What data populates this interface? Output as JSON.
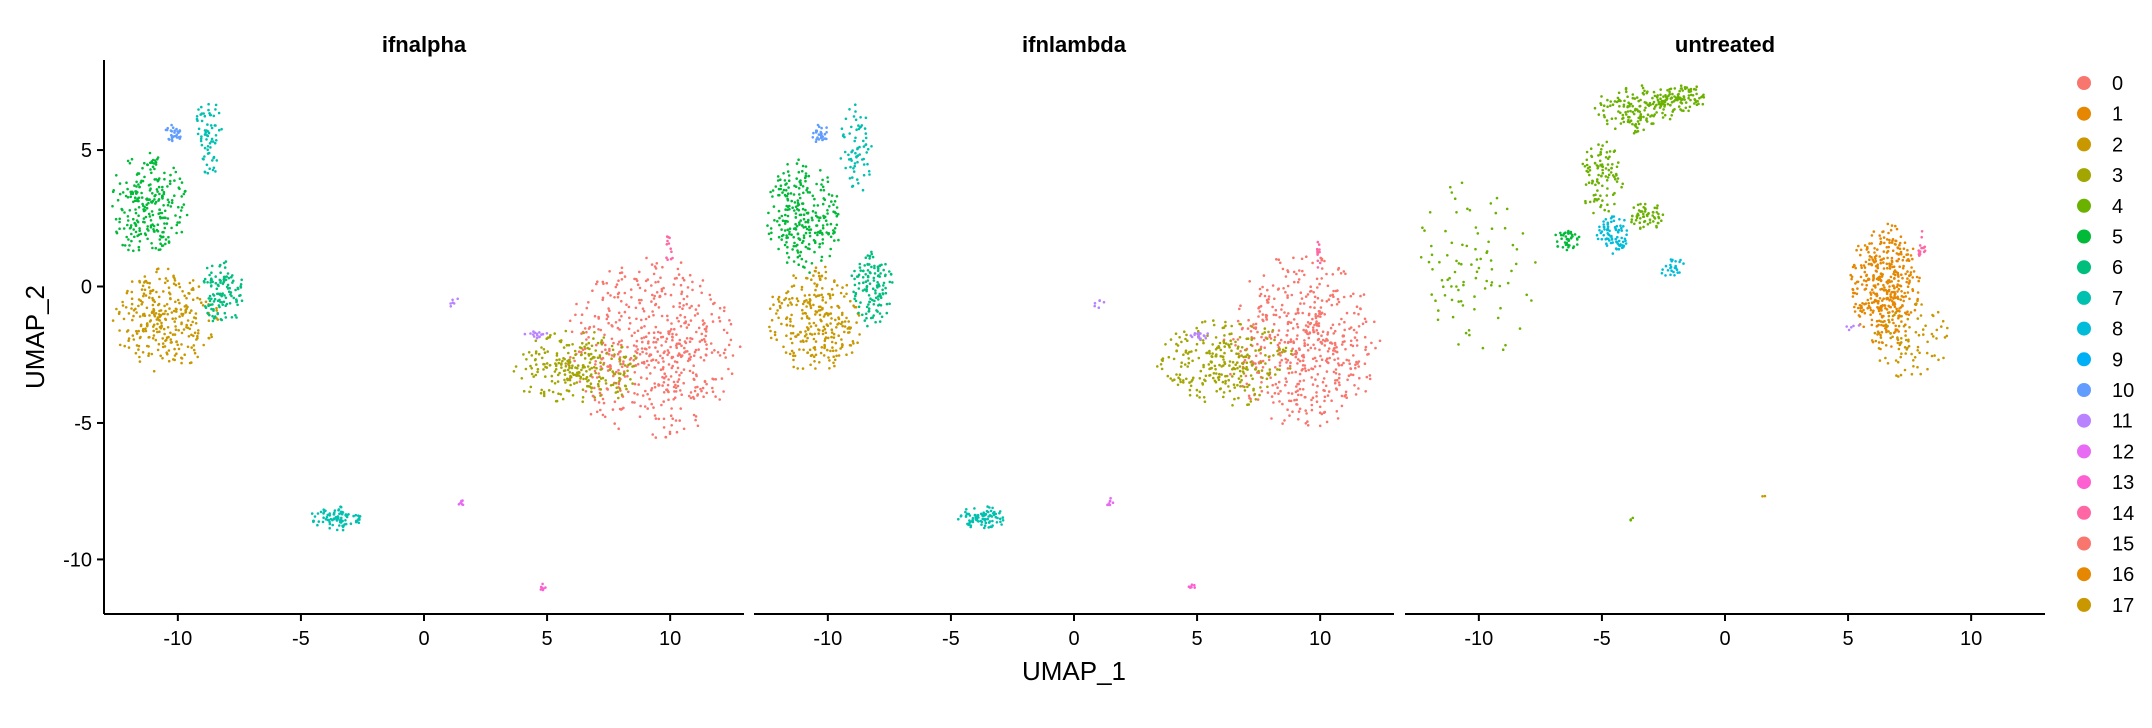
{
  "chart_data": {
    "type": "scatter",
    "xlabel": "UMAP_1",
    "ylabel": "UMAP_2",
    "xlim": [
      -13,
      13
    ],
    "ylim": [
      -12,
      8.3
    ],
    "xticks": [
      -10,
      -5,
      0,
      5,
      10
    ],
    "yticks": [
      5,
      0,
      -5,
      -10
    ],
    "legend_position": "right",
    "legend": [
      {
        "label": "0",
        "color": "#F8766D"
      },
      {
        "label": "1",
        "color": "#E58700"
      },
      {
        "label": "2",
        "color": "#C99800"
      },
      {
        "label": "3",
        "color": "#A3A500"
      },
      {
        "label": "4",
        "color": "#6BB100"
      },
      {
        "label": "5",
        "color": "#00BA38"
      },
      {
        "label": "6",
        "color": "#00BF7D"
      },
      {
        "label": "7",
        "color": "#00C0AF"
      },
      {
        "label": "8",
        "color": "#00BCD8"
      },
      {
        "label": "9",
        "color": "#00B0F6"
      },
      {
        "label": "10",
        "color": "#619CFF"
      },
      {
        "label": "11",
        "color": "#B983FF"
      },
      {
        "label": "12",
        "color": "#E76BF3"
      },
      {
        "label": "13",
        "color": "#FD61D1"
      },
      {
        "label": "14",
        "color": "#FF67A4"
      },
      {
        "label": "15",
        "color": "#F8766D"
      },
      {
        "label": "16",
        "color": "#E58700"
      },
      {
        "label": "17",
        "color": "#C99800"
      }
    ],
    "panels": [
      {
        "title": "ifnalpha",
        "clusters": [
          {
            "color": "#F8766D",
            "cx": 9.3,
            "cy": -2.3,
            "rx": 2.0,
            "ry": 1.9,
            "n": 560
          },
          {
            "color": "#A3A500",
            "cx": 6.2,
            "cy": -3.0,
            "rx": 1.5,
            "ry": 0.8,
            "n": 260
          },
          {
            "color": "#C99800",
            "cx": -10.5,
            "cy": -1.2,
            "rx": 1.2,
            "ry": 1.1,
            "n": 300
          },
          {
            "color": "#00BA38",
            "cx": -11.2,
            "cy": 3.0,
            "rx": 0.9,
            "ry": 1.2,
            "n": 260
          },
          {
            "color": "#00BF7D",
            "cx": -8.2,
            "cy": -0.2,
            "rx": 0.5,
            "ry": 0.7,
            "n": 120
          },
          {
            "color": "#00C0AF",
            "cx": -3.6,
            "cy": -8.5,
            "rx": 0.6,
            "ry": 0.25,
            "n": 90
          },
          {
            "color": "#00C0AF",
            "cx": -8.7,
            "cy": 5.5,
            "rx": 0.4,
            "ry": 0.9,
            "n": 70
          },
          {
            "color": "#619CFF",
            "cx": -10.2,
            "cy": 5.6,
            "rx": 0.2,
            "ry": 0.2,
            "n": 30
          },
          {
            "color": "#B983FF",
            "cx": 4.6,
            "cy": -1.8,
            "rx": 0.3,
            "ry": 0.1,
            "n": 15
          },
          {
            "color": "#B983FF",
            "cx": 1.2,
            "cy": -0.6,
            "rx": 0.2,
            "ry": 0.1,
            "n": 6
          },
          {
            "color": "#E76BF3",
            "cx": 1.5,
            "cy": -7.9,
            "rx": 0.1,
            "ry": 0.1,
            "n": 8
          },
          {
            "color": "#FD61D1",
            "cx": 4.8,
            "cy": -11.0,
            "rx": 0.1,
            "ry": 0.1,
            "n": 8
          },
          {
            "color": "#FF67A4",
            "cx": 10.0,
            "cy": 1.4,
            "rx": 0.1,
            "ry": 0.4,
            "n": 12
          }
        ]
      },
      {
        "title": "ifnlambda",
        "clusters": [
          {
            "color": "#F8766D",
            "cx": 9.3,
            "cy": -2.0,
            "rx": 1.8,
            "ry": 1.8,
            "n": 540
          },
          {
            "color": "#A3A500",
            "cx": 6.2,
            "cy": -2.8,
            "rx": 1.6,
            "ry": 0.9,
            "n": 280
          },
          {
            "color": "#C99800",
            "cx": -10.5,
            "cy": -1.2,
            "rx": 1.1,
            "ry": 1.1,
            "n": 280
          },
          {
            "color": "#00BA38",
            "cx": -11.0,
            "cy": 2.6,
            "rx": 0.9,
            "ry": 1.2,
            "n": 270
          },
          {
            "color": "#00BF7D",
            "cx": -8.2,
            "cy": -0.1,
            "rx": 0.5,
            "ry": 0.8,
            "n": 130
          },
          {
            "color": "#00C0AF",
            "cx": -3.7,
            "cy": -8.5,
            "rx": 0.6,
            "ry": 0.25,
            "n": 90
          },
          {
            "color": "#00C0AF",
            "cx": -8.8,
            "cy": 5.0,
            "rx": 0.4,
            "ry": 1.0,
            "n": 70
          },
          {
            "color": "#619CFF",
            "cx": -10.3,
            "cy": 5.6,
            "rx": 0.2,
            "ry": 0.2,
            "n": 30
          },
          {
            "color": "#B983FF",
            "cx": 5.0,
            "cy": -1.8,
            "rx": 0.4,
            "ry": 0.1,
            "n": 18
          },
          {
            "color": "#B983FF",
            "cx": 1.0,
            "cy": -0.6,
            "rx": 0.2,
            "ry": 0.1,
            "n": 6
          },
          {
            "color": "#E76BF3",
            "cx": 1.5,
            "cy": -7.9,
            "rx": 0.1,
            "ry": 0.1,
            "n": 8
          },
          {
            "color": "#FD61D1",
            "cx": 4.8,
            "cy": -11.0,
            "rx": 0.1,
            "ry": 0.1,
            "n": 8
          },
          {
            "color": "#FF67A4",
            "cx": 10.0,
            "cy": 1.2,
            "rx": 0.1,
            "ry": 0.4,
            "n": 12
          }
        ]
      },
      {
        "title": "untreated",
        "clusters": [
          {
            "color": "#E58700",
            "cx": 6.5,
            "cy": 0.0,
            "rx": 0.8,
            "ry": 1.3,
            "n": 420
          },
          {
            "color": "#C99800",
            "cx": 7.5,
            "cy": -2.0,
            "rx": 1.0,
            "ry": 0.8,
            "n": 90
          },
          {
            "color": "#6BB100",
            "cx": -3.6,
            "cy": 6.5,
            "rx": 1.0,
            "ry": 0.5,
            "n": 150
          },
          {
            "color": "#6BB100",
            "cx": -1.8,
            "cy": 6.9,
            "rx": 0.6,
            "ry": 0.3,
            "n": 100
          },
          {
            "color": "#6BB100",
            "cx": -5.0,
            "cy": 4.0,
            "rx": 0.5,
            "ry": 0.8,
            "n": 100
          },
          {
            "color": "#6BB100",
            "cx": -3.2,
            "cy": 2.6,
            "rx": 0.4,
            "ry": 0.3,
            "n": 60
          },
          {
            "color": "#6BB100",
            "cx": -10.2,
            "cy": 0.6,
            "rx": 1.5,
            "ry": 2.0,
            "n": 90
          },
          {
            "color": "#00BA38",
            "cx": -6.4,
            "cy": 1.7,
            "rx": 0.3,
            "ry": 0.25,
            "n": 40
          },
          {
            "color": "#00BCD8",
            "cx": -4.5,
            "cy": 1.9,
            "rx": 0.4,
            "ry": 0.4,
            "n": 80
          },
          {
            "color": "#00BCD8",
            "cx": -2.1,
            "cy": 0.7,
            "rx": 0.3,
            "ry": 0.25,
            "n": 25
          },
          {
            "color": "#FF67A4",
            "cx": 8.0,
            "cy": 1.5,
            "rx": 0.1,
            "ry": 0.3,
            "n": 15
          },
          {
            "color": "#B983FF",
            "cx": 5.2,
            "cy": -1.5,
            "rx": 0.2,
            "ry": 0.1,
            "n": 5
          },
          {
            "color": "#6BB100",
            "cx": -3.9,
            "cy": -8.5,
            "rx": 0.1,
            "ry": 0.1,
            "n": 3
          },
          {
            "color": "#C99800",
            "cx": 1.6,
            "cy": -7.7,
            "rx": 0.05,
            "ry": 0.05,
            "n": 2
          }
        ]
      }
    ]
  }
}
